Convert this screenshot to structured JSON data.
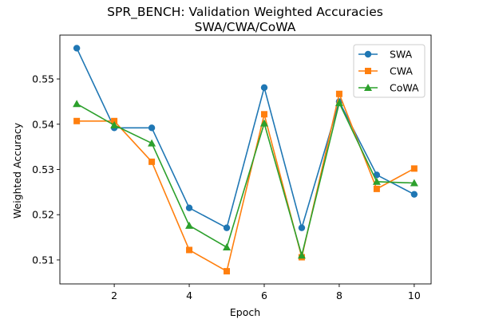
{
  "chart_data": {
    "type": "line",
    "title": "SPR_BENCH: Validation Weighted Accuracies",
    "subtitle": "SWA/CWA/CoWA",
    "xlabel": "Epoch",
    "ylabel": "Weighted Accuracy",
    "xlim": [
      0.55,
      10.45
    ],
    "ylim": [
      0.5047,
      0.5597
    ],
    "xticks": [
      2,
      4,
      6,
      8,
      10
    ],
    "yticks": [
      0.51,
      0.52,
      0.53,
      0.54,
      0.55
    ],
    "grid": false,
    "legend_position": "top-right",
    "x": [
      1,
      2,
      3,
      4,
      5,
      6,
      7,
      8,
      9,
      10
    ],
    "series": [
      {
        "name": "SWA",
        "color": "#1f77b4",
        "marker": "circle",
        "values": [
          0.5568,
          0.5392,
          0.5392,
          0.5215,
          0.5171,
          0.5481,
          0.5171,
          0.545,
          0.5288,
          0.5245
        ]
      },
      {
        "name": "CWA",
        "color": "#ff7f0e",
        "marker": "square",
        "values": [
          0.5407,
          0.5407,
          0.5317,
          0.5122,
          0.5075,
          0.5422,
          0.5106,
          0.5467,
          0.5257,
          0.5302
        ]
      },
      {
        "name": "CoWA",
        "color": "#2ca02c",
        "marker": "triangle",
        "values": [
          0.5445,
          0.5398,
          0.5358,
          0.5176,
          0.5128,
          0.5402,
          0.511,
          0.5447,
          0.5273,
          0.527
        ]
      }
    ]
  }
}
